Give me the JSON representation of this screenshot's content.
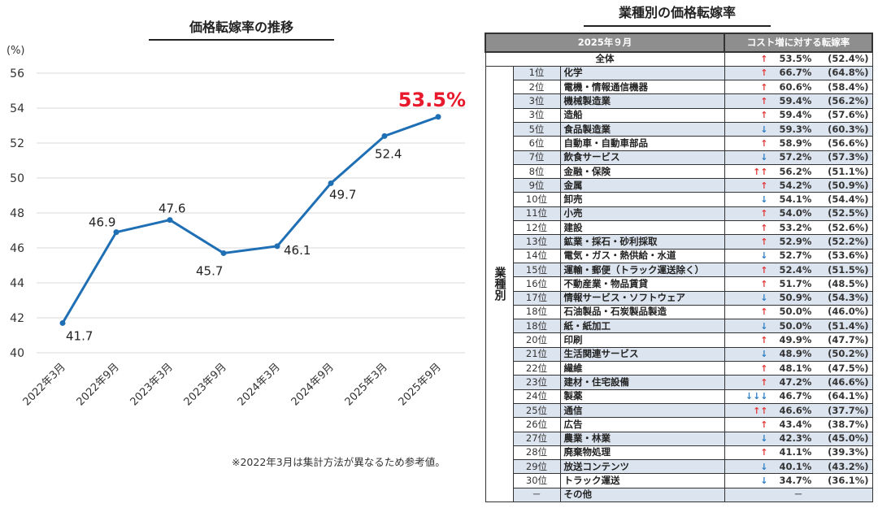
{
  "chart_data": {
    "type": "line",
    "title": "価格転嫁率の推移",
    "ylabel": "(%)",
    "ylim": [
      40,
      56
    ],
    "yticks": [
      40,
      42,
      44,
      46,
      48,
      50,
      52,
      54,
      56
    ],
    "categories": [
      "2022年3月",
      "2022年9月",
      "2023年3月",
      "2023年9月",
      "2024年3月",
      "2024年9月",
      "2025年3月",
      "2025年9月"
    ],
    "values": [
      41.7,
      46.9,
      47.6,
      45.7,
      46.1,
      49.7,
      52.4,
      53.5
    ],
    "data_labels": [
      "41.7",
      "46.9",
      "47.6",
      "45.7",
      "46.1",
      "49.7",
      "52.4",
      "53.5%"
    ],
    "grid": true,
    "line_color": "#1f6fb5",
    "highlight_color": "#e8192c",
    "footnote": "※2022年3月は集計方法が異なるため参考値。"
  },
  "table": {
    "title": "業種別の価格転嫁率",
    "header_period": "2025年９月",
    "header_rate": "コスト増に対する転嫁率",
    "group_label": "業種別",
    "total": {
      "label": "全体",
      "arrow": "↑",
      "dir": "up",
      "value": "53.5%",
      "prev": "(52.4%)"
    },
    "rows": [
      {
        "rank": "1位",
        "name": "化学",
        "arrow": "↑",
        "dir": "up",
        "value": "66.7%",
        "prev": "(64.8%)"
      },
      {
        "rank": "2位",
        "name": "電機・情報通信機器",
        "arrow": "↑",
        "dir": "up",
        "value": "60.6%",
        "prev": "(58.4%)"
      },
      {
        "rank": "3位",
        "name": "機械製造業",
        "arrow": "↑",
        "dir": "up",
        "value": "59.4%",
        "prev": "(56.2%)"
      },
      {
        "rank": "3位",
        "name": "造船",
        "arrow": "↑",
        "dir": "up",
        "value": "59.4%",
        "prev": "(57.6%)"
      },
      {
        "rank": "5位",
        "name": "食品製造業",
        "arrow": "↓",
        "dir": "dn",
        "value": "59.3%",
        "prev": "(60.3%)"
      },
      {
        "rank": "6位",
        "name": "自動車・自動車部品",
        "arrow": "↑",
        "dir": "up",
        "value": "58.9%",
        "prev": "(56.6%)"
      },
      {
        "rank": "7位",
        "name": "飲食サービス",
        "arrow": "↓",
        "dir": "dn",
        "value": "57.2%",
        "prev": "(57.3%)"
      },
      {
        "rank": "8位",
        "name": "金融・保険",
        "arrow": "↑↑",
        "dir": "up",
        "value": "56.2%",
        "prev": "(51.1%)"
      },
      {
        "rank": "9位",
        "name": "金属",
        "arrow": "↑",
        "dir": "up",
        "value": "54.2%",
        "prev": "(50.9%)"
      },
      {
        "rank": "10位",
        "name": "卸売",
        "arrow": "↓",
        "dir": "dn",
        "value": "54.1%",
        "prev": "(54.4%)"
      },
      {
        "rank": "11位",
        "name": "小売",
        "arrow": "↑",
        "dir": "up",
        "value": "54.0%",
        "prev": "(52.5%)"
      },
      {
        "rank": "12位",
        "name": "建設",
        "arrow": "↑",
        "dir": "up",
        "value": "53.2%",
        "prev": "(52.6%)"
      },
      {
        "rank": "13位",
        "name": "鉱業・採石・砂利採取",
        "arrow": "↑",
        "dir": "up",
        "value": "52.9%",
        "prev": "(52.2%)"
      },
      {
        "rank": "14位",
        "name": "電気・ガス・熱供給・水道",
        "arrow": "↓",
        "dir": "dn",
        "value": "52.7%",
        "prev": "(53.6%)"
      },
      {
        "rank": "15位",
        "name": "運輸・郵便（トラック運送除く）",
        "arrow": "↑",
        "dir": "up",
        "value": "52.4%",
        "prev": "(51.5%)"
      },
      {
        "rank": "16位",
        "name": "不動産業・物品賃貸",
        "arrow": "↑",
        "dir": "up",
        "value": "51.7%",
        "prev": "(48.5%)"
      },
      {
        "rank": "17位",
        "name": "情報サービス・ソフトウェア",
        "arrow": "↓",
        "dir": "dn",
        "value": "50.9%",
        "prev": "(54.3%)"
      },
      {
        "rank": "18位",
        "name": "石油製品・石炭製品製造",
        "arrow": "↑",
        "dir": "up",
        "value": "50.0%",
        "prev": "(46.0%)"
      },
      {
        "rank": "18位",
        "name": "紙・紙加工",
        "arrow": "↓",
        "dir": "dn",
        "value": "50.0%",
        "prev": "(51.4%)"
      },
      {
        "rank": "20位",
        "name": "印刷",
        "arrow": "↑",
        "dir": "up",
        "value": "49.9%",
        "prev": "(47.7%)"
      },
      {
        "rank": "21位",
        "name": "生活関連サービス",
        "arrow": "↓",
        "dir": "dn",
        "value": "48.9%",
        "prev": "(50.2%)"
      },
      {
        "rank": "22位",
        "name": "繊維",
        "arrow": "↑",
        "dir": "up",
        "value": "48.1%",
        "prev": "(47.5%)"
      },
      {
        "rank": "23位",
        "name": "建材・住宅設備",
        "arrow": "↑",
        "dir": "up",
        "value": "47.2%",
        "prev": "(46.6%)"
      },
      {
        "rank": "24位",
        "name": "製薬",
        "arrow": "↓↓↓",
        "dir": "dn",
        "value": "46.7%",
        "prev": "(64.1%)"
      },
      {
        "rank": "25位",
        "name": "通信",
        "arrow": "↑↑",
        "dir": "up",
        "value": "46.6%",
        "prev": "(37.7%)"
      },
      {
        "rank": "26位",
        "name": "広告",
        "arrow": "↑",
        "dir": "up",
        "value": "43.4%",
        "prev": "(38.7%)"
      },
      {
        "rank": "27位",
        "name": "農業・林業",
        "arrow": "↓",
        "dir": "dn",
        "value": "42.3%",
        "prev": "(45.0%)"
      },
      {
        "rank": "28位",
        "name": "廃棄物処理",
        "arrow": "↑",
        "dir": "up",
        "value": "41.1%",
        "prev": "(39.3%)"
      },
      {
        "rank": "29位",
        "name": "放送コンテンツ",
        "arrow": "↓",
        "dir": "dn",
        "value": "40.1%",
        "prev": "(43.2%)"
      },
      {
        "rank": "30位",
        "name": "トラック運送",
        "arrow": "↓",
        "dir": "dn",
        "value": "34.7%",
        "prev": "(36.1%)"
      }
    ],
    "other": {
      "rank": "－",
      "name": "その他",
      "value": "－"
    }
  }
}
